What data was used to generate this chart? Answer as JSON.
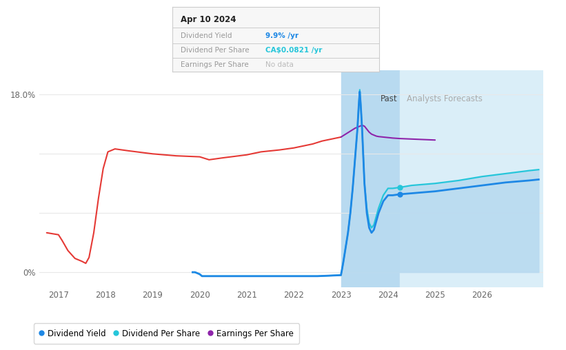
{
  "bg_color": "#ffffff",
  "plot_bg_color": "#ffffff",
  "grid_color": "#e8e8e8",
  "past_shade_color": "#b8daf0",
  "forecast_shade_color": "#daeef8",
  "past_x_start": 2023.0,
  "past_x_end": 2024.25,
  "forecast_x_end": 2027.3,
  "ymax": 20.5,
  "ymin": -1.5,
  "xmin": 2016.6,
  "xmax": 2027.3,
  "tooltip_date": "Apr 10 2024",
  "tooltip_dy": "9.9%",
  "tooltip_dps": "CA$0.0821",
  "tooltip_eps": "No data",
  "div_yield_color": "#1E88E5",
  "div_per_share_color": "#26C6DA",
  "eps_color_red": "#E53935",
  "eps_color_purple": "#8E24AA",
  "past_label": "Past",
  "forecast_label": "Analysts Forecasts",
  "legend_items": [
    "Dividend Yield",
    "Dividend Per Share",
    "Earnings Per Share"
  ],
  "legend_colors": [
    "#1E88E5",
    "#26C6DA",
    "#8E24AA"
  ],
  "eps_x_red": [
    2016.75,
    2017.0,
    2017.08,
    2017.2,
    2017.35,
    2017.5,
    2017.58,
    2017.65,
    2017.75,
    2017.85,
    2017.95,
    2018.05,
    2018.2,
    2018.5,
    2019.0,
    2019.5,
    2020.0,
    2020.2,
    2020.5,
    2021.0,
    2021.3,
    2021.5,
    2021.7,
    2022.0,
    2022.2,
    2022.4,
    2022.6,
    2022.8,
    2022.9,
    2023.0
  ],
  "eps_y_red": [
    4.0,
    3.8,
    3.2,
    2.2,
    1.4,
    1.1,
    0.9,
    1.5,
    4.0,
    7.5,
    10.5,
    12.2,
    12.5,
    12.3,
    12.0,
    11.8,
    11.7,
    11.4,
    11.6,
    11.9,
    12.2,
    12.3,
    12.4,
    12.6,
    12.8,
    13.0,
    13.3,
    13.5,
    13.6,
    13.7
  ],
  "eps_x_purple": [
    2023.0,
    2023.1,
    2023.2,
    2023.3,
    2023.4,
    2023.45,
    2023.5,
    2023.55,
    2023.6,
    2023.65,
    2023.7,
    2023.75,
    2023.8,
    2023.9,
    2024.0,
    2024.1,
    2024.25,
    2024.5,
    2025.0
  ],
  "eps_y_purple": [
    13.7,
    14.0,
    14.3,
    14.6,
    14.8,
    14.9,
    14.8,
    14.5,
    14.2,
    14.0,
    13.9,
    13.8,
    13.75,
    13.7,
    13.65,
    13.6,
    13.55,
    13.5,
    13.4
  ],
  "dps_x": [
    2019.85,
    2019.9,
    2020.0,
    2020.05,
    2020.2,
    2020.5,
    2021.0,
    2021.5,
    2022.0,
    2022.5,
    2023.0,
    2023.02,
    2023.05,
    2023.1,
    2023.15,
    2023.2,
    2023.25,
    2023.3,
    2023.35,
    2023.38,
    2023.4,
    2023.42,
    2023.45,
    2023.5,
    2023.55,
    2023.6,
    2023.65,
    2023.7,
    2023.8,
    2023.9,
    2024.0,
    2024.1,
    2024.25,
    2024.5,
    2025.0,
    2025.5,
    2026.0,
    2026.5,
    2027.0,
    2027.2
  ],
  "dps_y": [
    0.0,
    0.0,
    -0.2,
    -0.4,
    -0.4,
    -0.4,
    -0.4,
    -0.4,
    -0.4,
    -0.4,
    -0.3,
    0.2,
    1.0,
    2.5,
    4.0,
    6.0,
    8.5,
    11.5,
    14.5,
    17.0,
    18.5,
    17.0,
    14.5,
    9.0,
    6.5,
    5.0,
    4.5,
    4.8,
    6.5,
    7.8,
    8.5,
    8.5,
    8.6,
    8.8,
    9.0,
    9.3,
    9.7,
    10.0,
    10.3,
    10.4
  ],
  "dy_x": [
    2019.85,
    2019.9,
    2020.0,
    2020.05,
    2020.2,
    2020.5,
    2021.0,
    2021.5,
    2022.0,
    2022.5,
    2023.0,
    2023.02,
    2023.05,
    2023.1,
    2023.15,
    2023.2,
    2023.25,
    2023.3,
    2023.35,
    2023.38,
    2023.4,
    2023.42,
    2023.45,
    2023.5,
    2023.55,
    2023.6,
    2023.65,
    2023.7,
    2023.8,
    2023.9,
    2024.0,
    2024.1,
    2024.25,
    2024.5,
    2025.0,
    2025.5,
    2026.0,
    2026.5,
    2027.0,
    2027.2
  ],
  "dy_y": [
    0.0,
    0.0,
    -0.2,
    -0.4,
    -0.4,
    -0.4,
    -0.4,
    -0.4,
    -0.4,
    -0.4,
    -0.3,
    0.2,
    1.0,
    2.5,
    4.0,
    6.0,
    8.5,
    11.5,
    14.5,
    17.0,
    18.3,
    17.0,
    14.5,
    9.0,
    6.0,
    4.5,
    4.0,
    4.3,
    6.0,
    7.2,
    7.8,
    7.8,
    7.9,
    8.0,
    8.2,
    8.5,
    8.8,
    9.1,
    9.3,
    9.4
  ]
}
